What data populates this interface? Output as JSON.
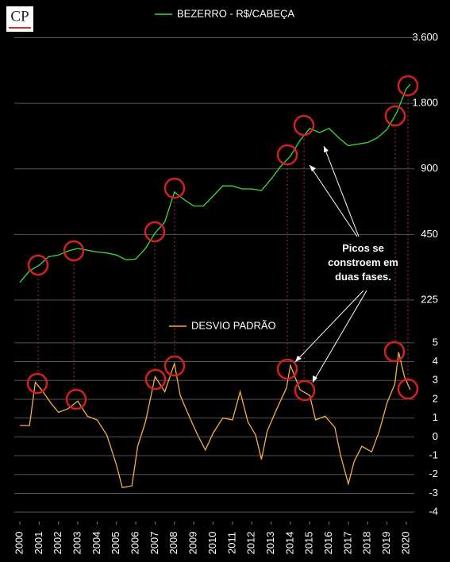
{
  "chart_data": [
    {
      "type": "line",
      "log_y": true,
      "series": [
        {
          "name": "BEZERRO - R$/CABEÇA",
          "color": "#3ddc3d",
          "x": [
            2000.0,
            2000.5,
            2001.0,
            2001.5,
            2002.0,
            2002.5,
            2003.0,
            2003.5,
            2004.0,
            2004.5,
            2005.0,
            2005.5,
            2006.0,
            2006.5,
            2007.0,
            2007.5,
            2008.0,
            2008.5,
            2009.0,
            2009.5,
            2010.0,
            2010.5,
            2011.0,
            2011.5,
            2012.0,
            2012.5,
            2013.0,
            2013.5,
            2014.0,
            2014.5,
            2015.0,
            2015.5,
            2016.0,
            2016.5,
            2017.0,
            2017.5,
            2018.0,
            2018.5,
            2019.0,
            2019.5,
            2020.0,
            2020.2
          ],
          "values": [
            271,
            306,
            325,
            356,
            362,
            378,
            388,
            381,
            374,
            370,
            362,
            344,
            347,
            388,
            457,
            513,
            705,
            650,
            608,
            608,
            675,
            752,
            752,
            728,
            728,
            716,
            808,
            924,
            1030,
            1218,
            1380,
            1320,
            1380,
            1250,
            1150,
            1170,
            1190,
            1250,
            1365,
            1630,
            2100,
            2200
          ]
        }
      ],
      "xlim": [
        2000,
        2020
      ],
      "ylim": [
        195,
        4000
      ],
      "yticks": [
        {
          "value": 3600,
          "label": "3.600"
        },
        {
          "value": 1800,
          "label": "1.800"
        },
        900,
        450,
        225
      ],
      "grid": true,
      "annotation": "Picos se constroem em duas fases."
    },
    {
      "type": "line",
      "series": [
        {
          "name": "DESVIO PADRÃO",
          "color": "#f5b041",
          "x": [
            2000.0,
            2000.5,
            2000.8,
            2001.2,
            2001.6,
            2002.0,
            2002.5,
            2003.0,
            2003.5,
            2004.0,
            2004.5,
            2005.0,
            2005.3,
            2005.8,
            2006.1,
            2006.5,
            2007.0,
            2007.5,
            2008.0,
            2008.3,
            2008.8,
            2009.2,
            2009.6,
            2010.0,
            2010.5,
            2011.0,
            2011.4,
            2011.8,
            2012.2,
            2012.5,
            2012.8,
            2013.3,
            2013.8,
            2014.0,
            2014.5,
            2015.0,
            2015.3,
            2015.8,
            2016.3,
            2016.6,
            2017.0,
            2017.3,
            2017.7,
            2018.2,
            2018.6,
            2019.0,
            2019.4,
            2019.6,
            2019.9,
            2020.2
          ],
          "values": [
            0.6,
            0.6,
            2.9,
            2.4,
            1.8,
            1.3,
            1.5,
            1.9,
            1.1,
            0.9,
            0.1,
            -1.5,
            -2.7,
            -2.6,
            -0.5,
            0.8,
            3.2,
            2.4,
            3.9,
            2.2,
            1.0,
            0.1,
            -0.7,
            0.2,
            1.0,
            0.9,
            2.4,
            0.8,
            0.1,
            -1.2,
            0.3,
            1.5,
            2.6,
            3.8,
            2.5,
            2.2,
            0.9,
            1.1,
            0.5,
            -1.0,
            -2.5,
            -1.3,
            -0.5,
            -0.8,
            0.3,
            1.8,
            2.8,
            4.5,
            3.2,
            2.5
          ]
        }
      ],
      "xlim": [
        2000,
        2020
      ],
      "xticks": [
        2000,
        2001,
        2002,
        2003,
        2004,
        2005,
        2006,
        2007,
        2008,
        2009,
        2010,
        2011,
        2012,
        2013,
        2014,
        2015,
        2016,
        2017,
        2018,
        2019,
        2020
      ],
      "ylim": [
        -4.5,
        5.5
      ],
      "yticks": [
        5,
        4,
        3,
        2,
        1,
        0,
        -1,
        -2,
        -3,
        -4
      ],
      "grid": true
    }
  ]
}
